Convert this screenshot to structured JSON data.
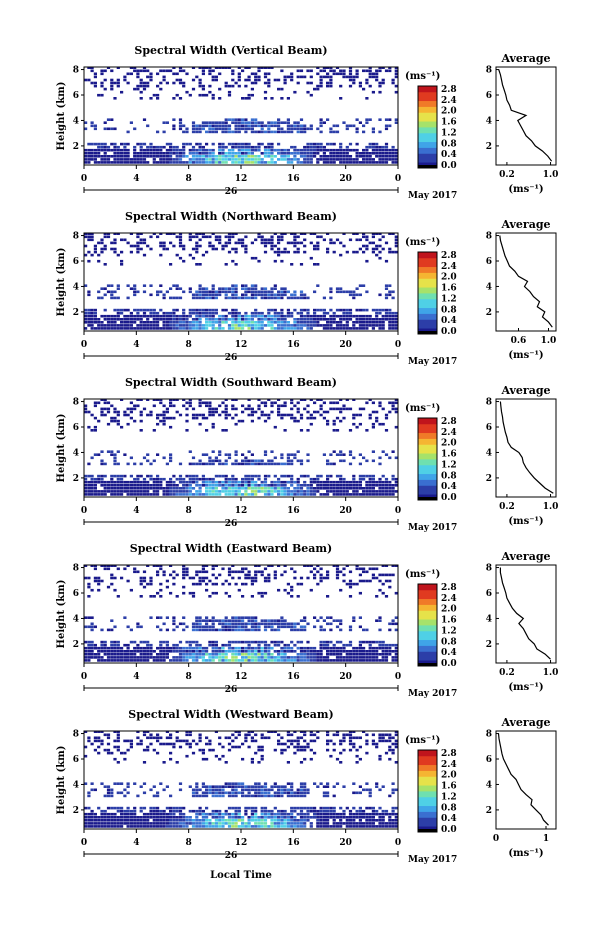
{
  "figure": {
    "xlabel": "Local Time",
    "date_label": "26",
    "month_label": "May 2017",
    "unit_label": "(ms⁻¹)",
    "average_title": "Average",
    "colorbar_ticks": [
      "0.0",
      "0.4",
      "0.8",
      "1.2",
      "1.6",
      "2.0",
      "2.4",
      "2.8"
    ],
    "colormap": [
      "#1a1a8c",
      "#2c3ea8",
      "#3a6fd0",
      "#3fa4e8",
      "#4fd0e6",
      "#6fe0b0",
      "#a6e26a",
      "#e6e24a",
      "#f5b532",
      "#f07a28",
      "#e03a20",
      "#c0141c"
    ],
    "background_color": "#ffffff"
  },
  "chart_data": [
    {
      "type": "heatmap",
      "title": "Spectral Width (Vertical Beam)",
      "ylabel": "Height (km)",
      "x_ticks": [
        "0",
        "4",
        "8",
        "12",
        "16",
        "20",
        "0"
      ],
      "xlim": [
        0,
        24
      ],
      "y_ticks": [
        "2",
        "4",
        "6",
        "8"
      ],
      "ylim": [
        0.5,
        8.2
      ],
      "colorbar_range": [
        0.0,
        2.8
      ],
      "z_unit": "ms^-1",
      "profile": {
        "title": "Average",
        "x_ticks": [
          "0.2",
          "1.0"
        ],
        "xlim": [
          0.0,
          1.1
        ],
        "y_ticks": [
          "2",
          "4",
          "6",
          "8"
        ],
        "ylim": [
          0.5,
          8.2
        ],
        "height": [
          0.8,
          1.2,
          1.6,
          2.0,
          2.4,
          2.8,
          3.2,
          3.6,
          4.0,
          4.4,
          4.8,
          5.2,
          5.6,
          6.0,
          6.4,
          6.8,
          7.2,
          7.6,
          8.0
        ],
        "value": [
          1.02,
          0.95,
          0.85,
          0.72,
          0.65,
          0.55,
          0.5,
          0.45,
          0.4,
          0.55,
          0.28,
          0.25,
          0.2,
          0.18,
          0.15,
          0.12,
          0.1,
          0.08,
          0.05
        ]
      }
    },
    {
      "type": "heatmap",
      "title": "Spectral Width (Northward Beam)",
      "ylabel": "Height (km)",
      "x_ticks": [
        "0",
        "4",
        "8",
        "12",
        "16",
        "20",
        "0"
      ],
      "xlim": [
        0,
        24
      ],
      "y_ticks": [
        "2",
        "4",
        "6",
        "8"
      ],
      "ylim": [
        0.5,
        8.2
      ],
      "colorbar_range": [
        0.0,
        2.8
      ],
      "z_unit": "ms^-1",
      "profile": {
        "title": "Average",
        "x_ticks": [
          "0.6",
          "1.0"
        ],
        "xlim": [
          0.3,
          1.1
        ],
        "y_ticks": [
          "2",
          "4",
          "6",
          "8"
        ],
        "ylim": [
          0.5,
          8.2
        ],
        "height": [
          0.8,
          1.2,
          1.6,
          2.0,
          2.4,
          2.8,
          3.2,
          3.6,
          4.0,
          4.4,
          4.8,
          5.2,
          5.6,
          6.0,
          6.4,
          6.8,
          7.2,
          7.6,
          8.0
        ],
        "value": [
          1.05,
          1.0,
          0.92,
          0.95,
          0.85,
          0.88,
          0.8,
          0.75,
          0.68,
          0.72,
          0.6,
          0.55,
          0.48,
          0.45,
          0.42,
          0.4,
          0.38,
          0.36,
          0.35
        ]
      }
    },
    {
      "type": "heatmap",
      "title": "Spectral Width (Southward Beam)",
      "ylabel": "Height (km)",
      "x_ticks": [
        "0",
        "4",
        "8",
        "12",
        "16",
        "20",
        "0"
      ],
      "xlim": [
        0,
        24
      ],
      "y_ticks": [
        "2",
        "4",
        "6",
        "8"
      ],
      "ylim": [
        0.5,
        8.2
      ],
      "colorbar_range": [
        0.0,
        2.8
      ],
      "z_unit": "ms^-1",
      "profile": {
        "title": "Average",
        "x_ticks": [
          "0.2",
          "1.0"
        ],
        "xlim": [
          0.0,
          1.1
        ],
        "y_ticks": [
          "2",
          "4",
          "6",
          "8"
        ],
        "ylim": [
          0.5,
          8.2
        ],
        "height": [
          0.8,
          1.2,
          1.6,
          2.0,
          2.4,
          2.8,
          3.2,
          3.6,
          4.0,
          4.4,
          4.8,
          5.2,
          5.6,
          6.0,
          6.4,
          6.8,
          7.2,
          7.6,
          8.0
        ],
        "value": [
          1.05,
          0.9,
          0.8,
          0.7,
          0.62,
          0.55,
          0.5,
          0.48,
          0.42,
          0.28,
          0.22,
          0.2,
          0.17,
          0.15,
          0.13,
          0.12,
          0.1,
          0.09,
          0.08
        ]
      }
    },
    {
      "type": "heatmap",
      "title": "Spectral Width (Eastward Beam)",
      "ylabel": "Height (km)",
      "x_ticks": [
        "0",
        "4",
        "8",
        "12",
        "16",
        "20",
        "0"
      ],
      "xlim": [
        0,
        24
      ],
      "y_ticks": [
        "2",
        "4",
        "6",
        "8"
      ],
      "ylim": [
        0.5,
        8.2
      ],
      "colorbar_range": [
        0.0,
        2.8
      ],
      "z_unit": "ms^-1",
      "profile": {
        "title": "Average",
        "x_ticks": [
          "0.2",
          "1.0"
        ],
        "xlim": [
          0.0,
          1.1
        ],
        "y_ticks": [
          "2",
          "4",
          "6",
          "8"
        ],
        "ylim": [
          0.5,
          8.2
        ],
        "height": [
          0.8,
          1.2,
          1.6,
          2.0,
          2.4,
          2.8,
          3.2,
          3.6,
          4.0,
          4.4,
          4.8,
          5.2,
          5.6,
          6.0,
          6.4,
          6.8,
          7.2,
          7.6,
          8.0
        ],
        "value": [
          1.0,
          0.9,
          0.75,
          0.7,
          0.6,
          0.55,
          0.5,
          0.42,
          0.5,
          0.38,
          0.3,
          0.25,
          0.2,
          0.18,
          0.15,
          0.12,
          0.1,
          0.08,
          0.08
        ]
      }
    },
    {
      "type": "heatmap",
      "title": "Spectral Width (Westward Beam)",
      "ylabel": "Height (km)",
      "x_ticks": [
        "0",
        "4",
        "8",
        "12",
        "16",
        "20",
        "0"
      ],
      "xlim": [
        0,
        24
      ],
      "y_ticks": [
        "2",
        "4",
        "6",
        "8"
      ],
      "ylim": [
        0.5,
        8.2
      ],
      "colorbar_range": [
        0.0,
        2.8
      ],
      "z_unit": "ms^-1",
      "profile": {
        "title": "Average",
        "x_ticks": [
          "0",
          "1"
        ],
        "xlim": [
          0.0,
          1.2
        ],
        "y_ticks": [
          "2",
          "4",
          "6",
          "8"
        ],
        "ylim": [
          0.5,
          8.2
        ],
        "height": [
          0.8,
          1.2,
          1.6,
          2.0,
          2.4,
          2.8,
          3.2,
          3.6,
          4.0,
          4.4,
          4.8,
          5.2,
          5.6,
          6.0,
          6.4,
          6.8,
          7.2,
          7.6,
          8.0
        ],
        "value": [
          1.05,
          0.95,
          0.9,
          0.8,
          0.7,
          0.72,
          0.6,
          0.5,
          0.45,
          0.4,
          0.3,
          0.25,
          0.2,
          0.15,
          0.12,
          0.1,
          0.08,
          0.06,
          0.05
        ]
      }
    }
  ]
}
